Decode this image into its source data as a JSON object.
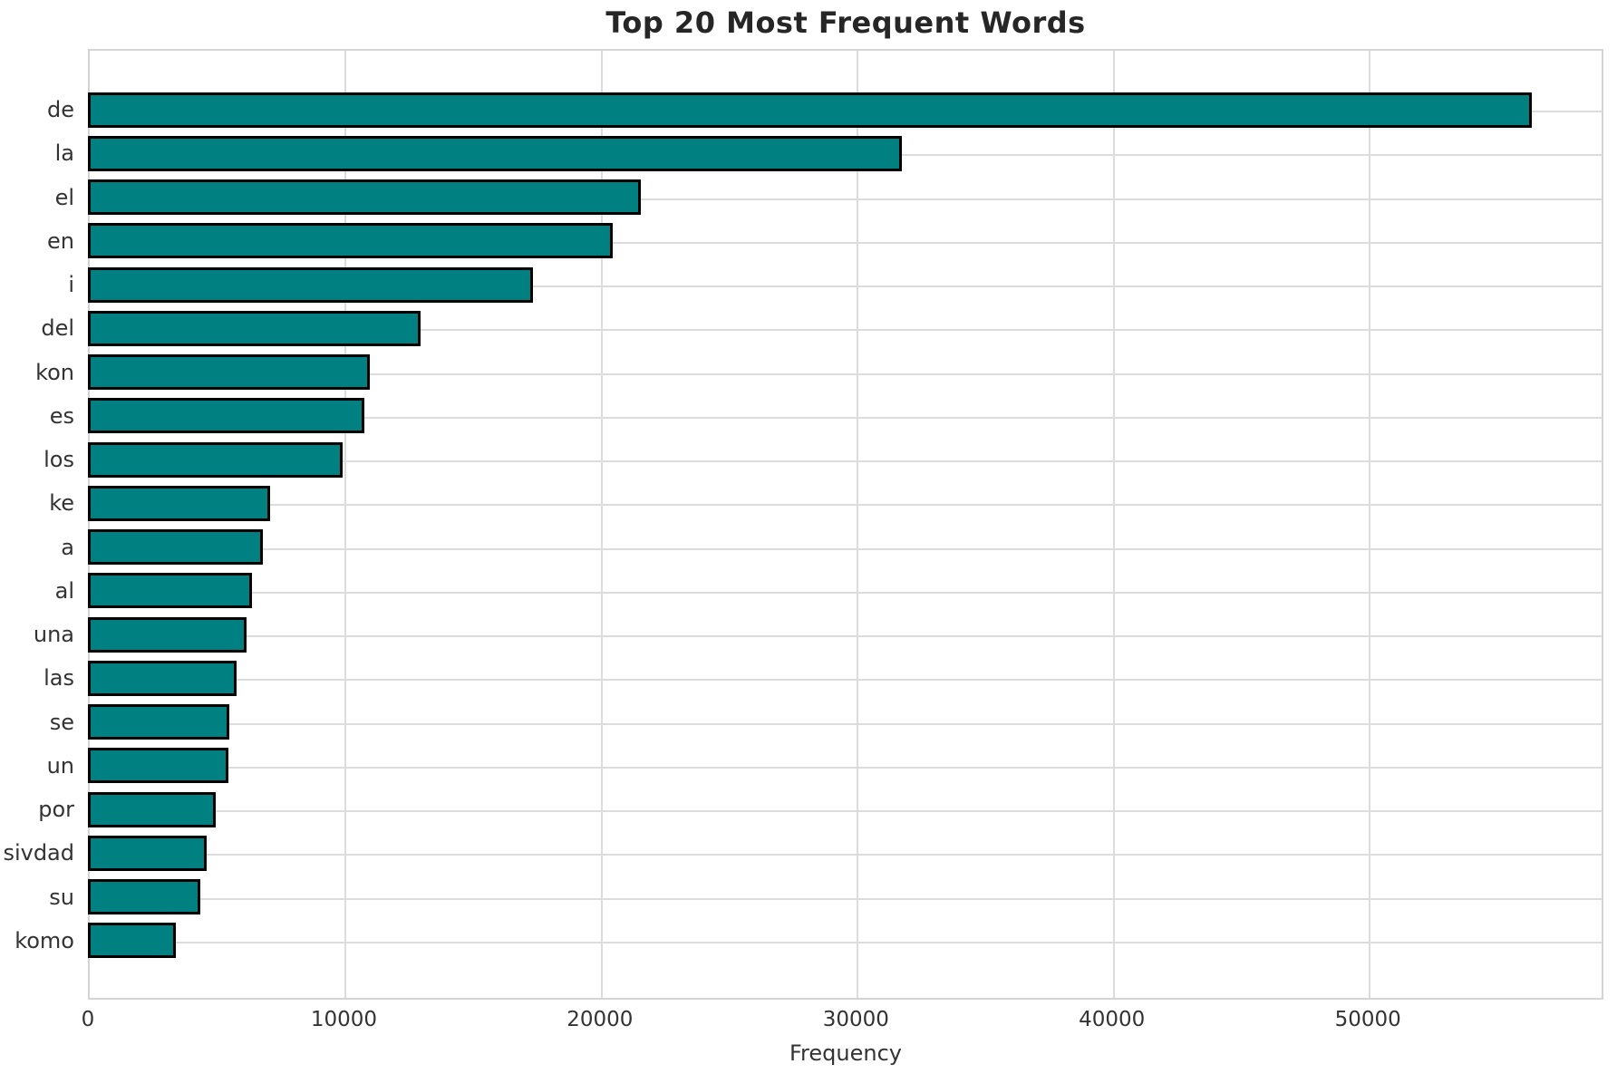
{
  "title": "Top 20 Most Frequent Words",
  "chart_data": {
    "type": "bar",
    "orientation": "horizontal",
    "title": "Top 20 Most Frequent Words",
    "xlabel": "Frequency",
    "ylabel": "",
    "categories": [
      "de",
      "la",
      "el",
      "en",
      "i",
      "del",
      "kon",
      "es",
      "los",
      "ke",
      "a",
      "al",
      "una",
      "las",
      "se",
      "un",
      "por",
      "sivdad",
      "su",
      "komo"
    ],
    "values": [
      56400,
      31800,
      21600,
      20500,
      17400,
      13000,
      11000,
      10800,
      9950,
      7100,
      6850,
      6400,
      6200,
      5800,
      5530,
      5490,
      5000,
      4650,
      4400,
      3450
    ],
    "x_ticks": [
      0,
      10000,
      20000,
      30000,
      40000,
      50000
    ],
    "x_tick_labels": [
      "0",
      "10000",
      "20000",
      "30000",
      "40000",
      "50000"
    ],
    "xlim": [
      0,
      59200
    ],
    "grid": true,
    "legend": false,
    "colors": {
      "bar_fill": "#008080",
      "bar_edge": "#000000",
      "grid": "#dcdcdc",
      "spine": "#d4d4d4",
      "title": "#262626",
      "tick": "#333333",
      "background": "#ffffff"
    }
  }
}
